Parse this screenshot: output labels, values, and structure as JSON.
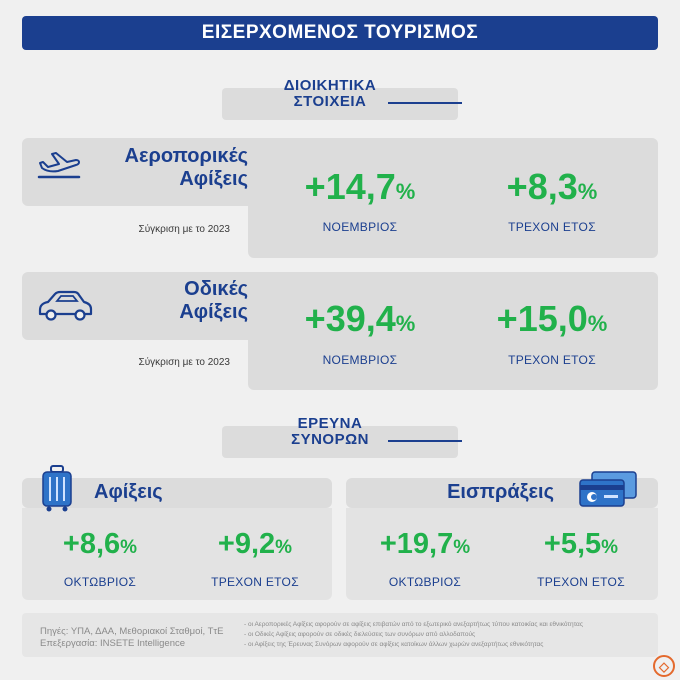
{
  "header": {
    "title": "ΕΙΣΕΡΧΟΜΕΝΟΣ ΤΟΥΡΙΣΜΟΣ"
  },
  "admin": {
    "title_line1": "ΔΙΟΙΚΗΤΙΚΑ",
    "title_line2": "ΣΤΟΙΧΕΙΑ",
    "air": {
      "label_line1": "Αεροπορικές",
      "label_line2": "Αφίξεις",
      "compare": "Σύγκριση με το 2023",
      "m1": {
        "value": "+14,7",
        "unit": "%",
        "period": "ΝΟΕΜΒΡΙΟΣ"
      },
      "m2": {
        "value": "+8,3",
        "unit": "%",
        "period": "ΤΡΕΧΟΝ ΕΤΟΣ"
      }
    },
    "road": {
      "label_line1": "Οδικές",
      "label_line2": "Αφίξεις",
      "compare": "Σύγκριση με το 2023",
      "m1": {
        "value": "+39,4",
        "unit": "%",
        "period": "ΝΟΕΜΒΡΙΟΣ"
      },
      "m2": {
        "value": "+15,0",
        "unit": "%",
        "period": "ΤΡΕΧΟΝ ΕΤΟΣ"
      }
    }
  },
  "border": {
    "title_line1": "ΕΡΕΥΝΑ",
    "title_line2": "ΣΥΝΟΡΩΝ",
    "arrivals": {
      "label": "Αφίξεις",
      "m1": {
        "value": "+8,6",
        "unit": "%",
        "period": "ΟΚΤΩΒΡΙΟΣ"
      },
      "m2": {
        "value": "+9,2",
        "unit": "%",
        "period": "ΤΡΕΧΟΝ ΕΤΟΣ"
      }
    },
    "receipts": {
      "label": "Εισπράξεις",
      "m1": {
        "value": "+19,7",
        "unit": "%",
        "period": "ΟΚΤΩΒΡΙΟΣ"
      },
      "m2": {
        "value": "+5,5",
        "unit": "%",
        "period": "ΤΡΕΧΟΝ ΕΤΟΣ"
      }
    }
  },
  "footer": {
    "sources": "Πηγές: ΥΠΑ, ΔΑΑ, Μεθοριακοί Σταθμοί, ΤτΕ",
    "processing": "Επεξεργασία: INSETE Intelligence",
    "note1": "- οι Αεροπορικές Αφίξεις αφορούν σε αφίξεις επιβατών από το εξωτερικό ανεξαρτήτως τύπου κατοικίας και εθνικότητας",
    "note2": "- οι Οδικές Αφίξεις αφορούν σε οδικές διελεύσεις των συνόρων από αλλοδαπούς",
    "note3": "- οι Αφίξεις της Έρευνας Συνόρων αφορούν σε αφίξεις κατοίκων άλλων χωρών ανεξαρτήτως εθνικότητας"
  },
  "icons": {
    "air": "airplane-icon",
    "road": "car-icon",
    "arrivals": "suitcase-icon",
    "receipts": "credit-card-icon",
    "watermark": "watermark-logo-icon"
  },
  "colors": {
    "primary": "#1b3f8f",
    "accent": "#21b14b",
    "panel": "#dcdcdc"
  }
}
